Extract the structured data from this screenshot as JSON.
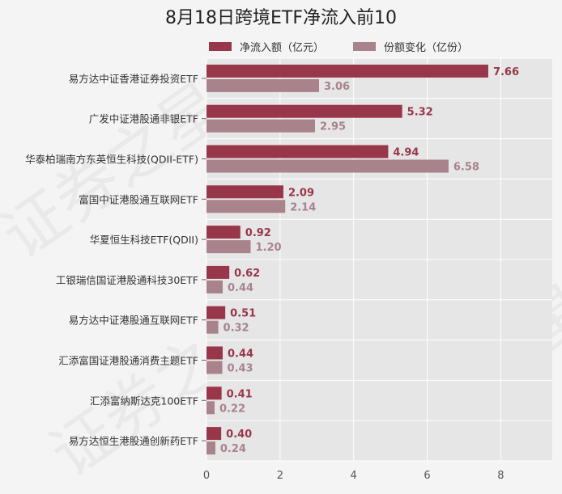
{
  "chart_data": {
    "type": "bar",
    "orientation": "horizontal",
    "title": "8月18日跨境ETF净流入前10",
    "categories": [
      "易方达中证香港证券投资ETF",
      "广发中证港股通非银ETF",
      "华泰柏瑞南方东英恒生科技(QDII-ETF)",
      "富国中证港股通互联网ETF",
      "华夏恒生科技ETF(QDII)",
      "工银瑞信国证港股通科技30ETF",
      "易方达中证港股通互联网ETF",
      "汇添富国证港股通消费主题ETF",
      "汇添富纳斯达克100ETF",
      "易方达恒生港股通创新药ETF"
    ],
    "series": [
      {
        "name": "净流入额（亿元）",
        "color": "#98374a",
        "values": [
          7.66,
          5.32,
          4.94,
          2.09,
          0.92,
          0.62,
          0.51,
          0.44,
          0.41,
          0.4
        ]
      },
      {
        "name": "份额变化（亿份）",
        "color": "#a8838c",
        "values": [
          3.06,
          2.95,
          6.58,
          2.14,
          1.2,
          0.44,
          0.32,
          0.43,
          0.22,
          0.24
        ]
      }
    ],
    "xlim": [
      0,
      9.4
    ],
    "xticks": [
      0,
      2,
      4,
      6,
      8
    ],
    "grid": true,
    "legend_position": "top",
    "background": "#e6e6e6"
  },
  "watermark": "证券之星"
}
